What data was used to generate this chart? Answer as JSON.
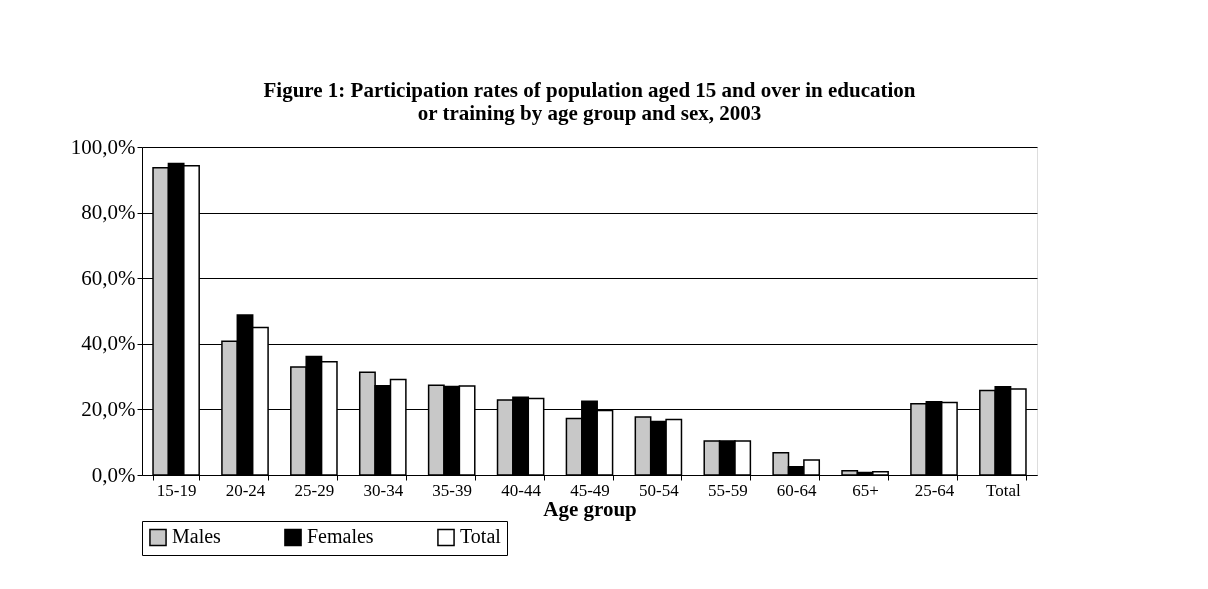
{
  "chart_data": {
    "type": "bar",
    "title": "Figure 1: Participation rates of population aged 15 and over in education\nor training by age group and sex, 2003",
    "xlabel": "Age group",
    "categories": [
      "15-19",
      "20-24",
      "25-29",
      "30-34",
      "35-39",
      "40-44",
      "45-49",
      "50-54",
      "55-59",
      "60-64",
      "65+",
      "25-64",
      "Total"
    ],
    "series": [
      {
        "name": "Males",
        "color": "#c8c8c8",
        "values": [
          93.7,
          40.8,
          32.9,
          31.3,
          27.4,
          22.9,
          17.2,
          17.7,
          10.4,
          6.8,
          1.3,
          21.7,
          25.8
        ]
      },
      {
        "name": "Females",
        "color": "#000000",
        "values": [
          95.0,
          48.8,
          36.1,
          27.2,
          27.0,
          23.7,
          22.5,
          16.3,
          10.4,
          2.5,
          0.8,
          22.3,
          26.9
        ]
      },
      {
        "name": "Total",
        "color": "#ffffff",
        "values": [
          94.3,
          45.0,
          34.5,
          29.1,
          27.1,
          23.3,
          19.7,
          16.9,
          10.4,
          4.6,
          1.0,
          22.1,
          26.2
        ]
      }
    ],
    "ylim": [
      0,
      100
    ],
    "yticks": [
      {
        "value": 0,
        "label": "0,0%"
      },
      {
        "value": 20,
        "label": "20,0%"
      },
      {
        "value": 40,
        "label": "40,0%"
      },
      {
        "value": 60,
        "label": "60,0%"
      },
      {
        "value": 80,
        "label": "80,0%"
      },
      {
        "value": 100,
        "label": "100,0%"
      }
    ],
    "grid": "y",
    "legend": "bottom"
  }
}
